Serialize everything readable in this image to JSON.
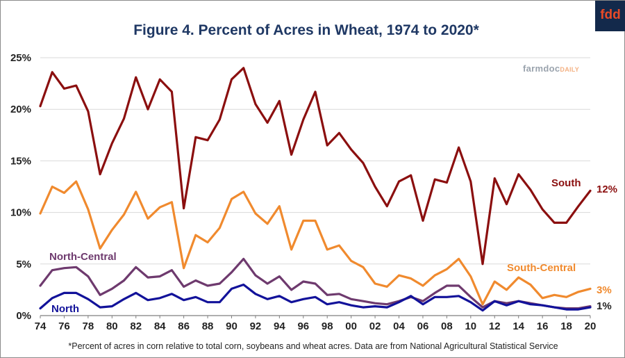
{
  "title": "Figure 4. Percent of Acres in Wheat, 1974 to 2020*",
  "logo": "fdd",
  "watermark": {
    "main": "farmdoc",
    "suffix": "DAILY"
  },
  "footnote": "*Percent of acres in corn relative to total corn, soybeans and wheat acres.  Data are from National Agricultural Statistical Service",
  "colors": {
    "South": "#8b0f0f",
    "South-Central": "#f08a2e",
    "North-Central": "#6e3a6e",
    "North": "#12129a",
    "title": "#1f3864"
  },
  "chart_data": {
    "type": "line",
    "title": "Figure 4. Percent of Acres in Wheat, 1974 to 2020*",
    "x": [
      1974,
      1975,
      1976,
      1977,
      1978,
      1979,
      1980,
      1981,
      1982,
      1983,
      1984,
      1985,
      1986,
      1987,
      1988,
      1989,
      1990,
      1991,
      1992,
      1993,
      1994,
      1995,
      1996,
      1997,
      1998,
      1999,
      2000,
      2001,
      2002,
      2003,
      2004,
      2005,
      2006,
      2007,
      2008,
      2009,
      2010,
      2011,
      2012,
      2013,
      2014,
      2015,
      2016,
      2017,
      2018,
      2019,
      2020
    ],
    "x_tick_labels": [
      "74",
      "76",
      "78",
      "80",
      "82",
      "84",
      "86",
      "88",
      "90",
      "92",
      "94",
      "96",
      "98",
      "00",
      "02",
      "04",
      "06",
      "08",
      "10",
      "12",
      "14",
      "16",
      "18",
      "20"
    ],
    "x_tick_values": [
      1974,
      1976,
      1978,
      1980,
      1982,
      1984,
      1986,
      1988,
      1990,
      1992,
      1994,
      1996,
      1998,
      2000,
      2002,
      2004,
      2006,
      2008,
      2010,
      2012,
      2014,
      2016,
      2018,
      2020
    ],
    "y_tick_labels": [
      "0%",
      "5%",
      "10%",
      "15%",
      "20%",
      "25%"
    ],
    "y_tick_values": [
      0,
      5,
      10,
      15,
      20,
      25
    ],
    "ylim": [
      0,
      25
    ],
    "xlim": [
      1974,
      2020
    ],
    "grid": "horizontal",
    "series": [
      {
        "name": "South",
        "end_label": "12%",
        "values": [
          20.3,
          23.6,
          22.0,
          22.3,
          19.8,
          13.7,
          16.7,
          19.1,
          23.1,
          20.0,
          22.9,
          21.7,
          10.4,
          17.3,
          17.0,
          19.0,
          22.9,
          24.0,
          20.5,
          18.7,
          20.8,
          15.6,
          19.0,
          21.7,
          16.5,
          17.7,
          16.1,
          14.8,
          12.5,
          10.6,
          13.0,
          13.6,
          9.2,
          13.2,
          12.9,
          16.3,
          13.0,
          5.0,
          13.3,
          10.8,
          13.7,
          12.2,
          10.3,
          9.0,
          9.0,
          10.6,
          12.1
        ]
      },
      {
        "name": "South-Central",
        "end_label": "3%",
        "values": [
          9.9,
          12.5,
          11.9,
          13.0,
          10.3,
          6.5,
          8.3,
          9.8,
          12.0,
          9.4,
          10.5,
          11.0,
          4.6,
          7.8,
          7.1,
          8.5,
          11.3,
          12.0,
          9.9,
          8.9,
          10.6,
          6.4,
          9.2,
          9.2,
          6.4,
          6.8,
          5.3,
          4.7,
          3.1,
          2.8,
          3.9,
          3.6,
          2.9,
          3.9,
          4.5,
          5.5,
          3.8,
          1.1,
          3.3,
          2.5,
          3.7,
          3.0,
          1.7,
          2.0,
          1.8,
          2.3,
          2.6
        ]
      },
      {
        "name": "North-Central",
        "end_label": "",
        "values": [
          2.9,
          4.4,
          4.6,
          4.7,
          3.8,
          2.0,
          2.6,
          3.4,
          4.7,
          3.7,
          3.8,
          4.4,
          2.8,
          3.4,
          2.9,
          3.1,
          4.2,
          5.5,
          3.9,
          3.1,
          3.8,
          2.5,
          3.3,
          3.1,
          2.0,
          2.1,
          1.6,
          1.4,
          1.2,
          1.1,
          1.4,
          1.8,
          1.4,
          2.2,
          2.9,
          2.9,
          1.8,
          0.8,
          1.4,
          1.2,
          1.4,
          1.2,
          1.0,
          0.8,
          0.7,
          0.7,
          0.9
        ]
      },
      {
        "name": "North",
        "end_label": "1%",
        "values": [
          0.7,
          1.7,
          2.2,
          2.2,
          1.6,
          0.8,
          0.9,
          1.6,
          2.2,
          1.5,
          1.7,
          2.1,
          1.5,
          1.8,
          1.3,
          1.3,
          2.6,
          3.0,
          2.1,
          1.6,
          1.9,
          1.3,
          1.6,
          1.8,
          1.1,
          1.3,
          1.0,
          0.8,
          0.9,
          0.8,
          1.3,
          1.9,
          1.1,
          1.8,
          1.8,
          1.9,
          1.3,
          0.5,
          1.4,
          1.0,
          1.4,
          1.1,
          1.0,
          0.8,
          0.6,
          0.6,
          0.8
        ]
      }
    ]
  }
}
